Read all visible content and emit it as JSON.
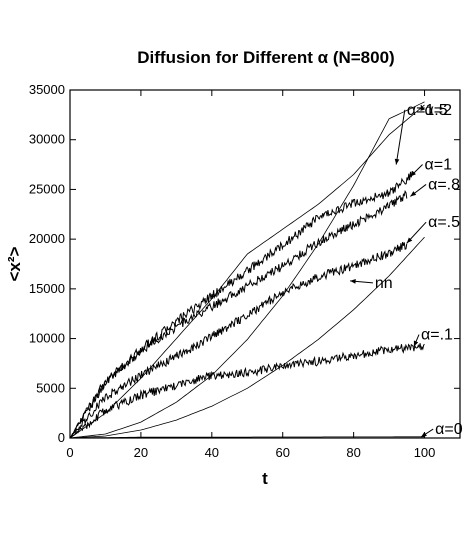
{
  "chart_data": {
    "type": "line",
    "title": "Diffusion for Different α (N=800)",
    "xlabel": "t",
    "ylabel": "<x²>",
    "xlim": [
      0,
      110
    ],
    "ylim": [
      0,
      35000
    ],
    "xticks": [
      0,
      20,
      40,
      60,
      80,
      100
    ],
    "yticks": [
      0,
      5000,
      10000,
      15000,
      20000,
      25000,
      30000,
      35000
    ],
    "grid": false,
    "legend": "none",
    "series": [
      {
        "name": "α=1.5",
        "noise": 0,
        "x": [
          0,
          10,
          20,
          30,
          40,
          50,
          60,
          70,
          80,
          90,
          100
        ],
        "values": [
          0,
          2500,
          6000,
          10000,
          14000,
          18500,
          21000,
          23500,
          26500,
          30500,
          33500
        ]
      },
      {
        "name": "α=2",
        "noise": 0,
        "x": [
          0,
          10,
          20,
          30,
          40,
          50,
          60,
          70,
          80,
          90,
          100
        ],
        "values": [
          0,
          400,
          1600,
          3600,
          6300,
          9900,
          14300,
          19500,
          25400,
          32100,
          33800
        ]
      },
      {
        "name": "α=1",
        "noise": 1,
        "x": [
          0,
          10,
          20,
          30,
          40,
          50,
          60,
          70,
          80,
          90,
          97
        ],
        "values": [
          0,
          5600,
          8900,
          11700,
          14300,
          16800,
          19400,
          22100,
          23600,
          24600,
          26600
        ]
      },
      {
        "name": "α=.8",
        "noise": 1,
        "x": [
          0,
          10,
          20,
          30,
          40,
          50,
          60,
          70,
          80,
          90,
          95
        ],
        "values": [
          0,
          5700,
          8700,
          11200,
          13200,
          15300,
          17300,
          19700,
          21500,
          23300,
          24500
        ]
      },
      {
        "name": "α=.5",
        "noise": 1,
        "x": [
          0,
          10,
          20,
          30,
          40,
          50,
          60,
          70,
          80,
          90,
          95
        ],
        "values": [
          0,
          4100,
          6300,
          8200,
          10200,
          12400,
          14600,
          16200,
          17300,
          18600,
          19500
        ]
      },
      {
        "name": "nn",
        "noise": 0,
        "x": [
          0,
          10,
          20,
          30,
          40,
          50,
          60,
          70,
          80,
          90,
          100
        ],
        "values": [
          0,
          200,
          800,
          1800,
          3200,
          5000,
          7300,
          9900,
          12900,
          16300,
          20200
        ]
      },
      {
        "name": "α=.1",
        "noise": 1,
        "x": [
          0,
          10,
          20,
          30,
          40,
          50,
          60,
          70,
          80,
          90,
          100
        ],
        "values": [
          0,
          2800,
          4300,
          5300,
          6300,
          6600,
          7200,
          7700,
          8300,
          8900,
          9300
        ]
      },
      {
        "name": "α=0",
        "noise": 0,
        "x": [
          0,
          20,
          40,
          60,
          80,
          100
        ],
        "values": [
          0,
          80,
          90,
          100,
          110,
          120
        ]
      }
    ],
    "annotations": [
      {
        "text": "α=1.5",
        "at": [
          95,
          32500
        ],
        "arrow_to": [
          92,
          27500
        ]
      },
      {
        "text": "α=2",
        "at": [
          100,
          32500
        ],
        "arrow_to": [
          99,
          33500
        ]
      },
      {
        "text": "α=1",
        "at": [
          100,
          27000
        ],
        "arrow_to": [
          96,
          26300
        ]
      },
      {
        "text": "α=.8",
        "at": [
          101,
          25000
        ],
        "arrow_to": [
          96,
          24300
        ]
      },
      {
        "text": "α=.5",
        "at": [
          101,
          21200
        ],
        "arrow_to": [
          95,
          19600
        ]
      },
      {
        "text": "nn",
        "at": [
          86,
          15100
        ],
        "arrow_to": [
          79,
          15800
        ]
      },
      {
        "text": "α=.1",
        "at": [
          99,
          9900
        ],
        "arrow_to": [
          97,
          9200
        ]
      },
      {
        "text": "α=0",
        "at": [
          103,
          400
        ],
        "arrow_to": [
          99,
          100
        ]
      }
    ]
  }
}
